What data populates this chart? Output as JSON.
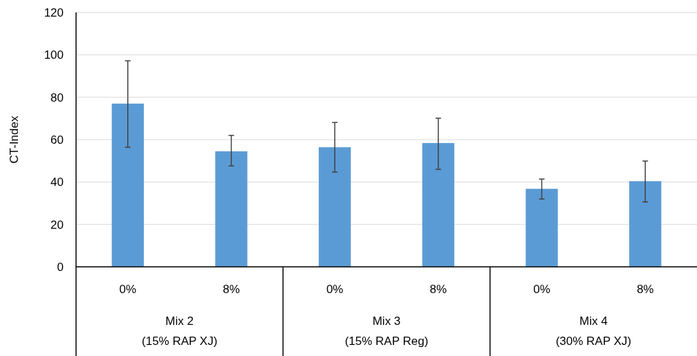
{
  "chart_data": {
    "type": "bar",
    "ylabel": "CT-Index",
    "categories": [
      "0%",
      "8%",
      "0%",
      "8%",
      "0%",
      "8%"
    ],
    "values": [
      77,
      54.5,
      56.4,
      58.4,
      36.8,
      40.4
    ],
    "errors": [
      [
        56.4,
        97.2
      ],
      [
        47.6,
        62
      ],
      [
        44.7,
        68.1
      ],
      [
        46,
        70.1
      ],
      [
        32,
        41.4
      ],
      [
        30.6,
        49.9
      ]
    ],
    "color": "#5b9bd5",
    "annotations": [
      "Mix 2\n(15% RAP XJ)",
      "Mix 3\n(15% RAP Reg)",
      "Mix 4\n(30% RAP XJ)"
    ],
    "ylim": [
      0,
      120
    ],
    "yticks": [
      0,
      20,
      40,
      60,
      80,
      100,
      120
    ],
    "grid": "y"
  }
}
